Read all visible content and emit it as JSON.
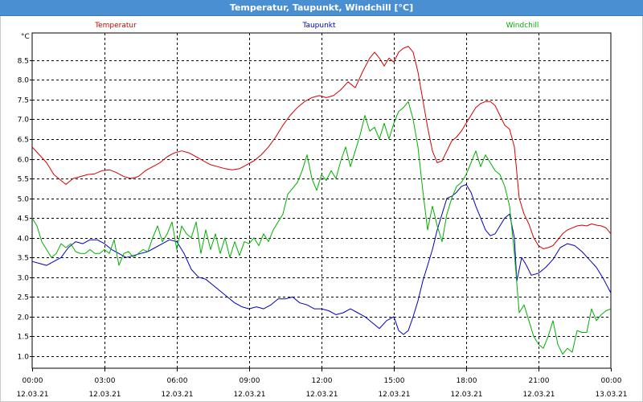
{
  "window": {
    "title": "Temperatur, Taupunkt, Windchill [°C]"
  },
  "chart_data": {
    "type": "line",
    "unit_label": "°C",
    "ylim": [
      1.0,
      9.0
    ],
    "y_ticks": [
      "1.0",
      "1.5",
      "2.0",
      "2.5",
      "3.0",
      "3.5",
      "4.0",
      "4.5",
      "5.0",
      "5.5",
      "6.0",
      "6.5",
      "7.0",
      "7.5",
      "8.0",
      "8.5"
    ],
    "x_ticks": [
      {
        "time": "00:00",
        "date": "12.03.21"
      },
      {
        "time": "03:00",
        "date": "12.03.21"
      },
      {
        "time": "06:00",
        "date": "12.03.21"
      },
      {
        "time": "09:00",
        "date": "12.03.21"
      },
      {
        "time": "12:00",
        "date": "12.03.21"
      },
      {
        "time": "15:00",
        "date": "12.03.21"
      },
      {
        "time": "18:00",
        "date": "12.03.21"
      },
      {
        "time": "21:00",
        "date": "12.03.21"
      },
      {
        "time": "00:00",
        "date": "13.03.21"
      }
    ],
    "x_hours_range": [
      0,
      24
    ],
    "grid": true,
    "series": [
      {
        "name": "Temperatur",
        "color": "#d40000",
        "points": [
          [
            0,
            6.3
          ],
          [
            0.3,
            6.1
          ],
          [
            0.6,
            5.9
          ],
          [
            0.9,
            5.6
          ],
          [
            1.2,
            5.45
          ],
          [
            1.4,
            5.35
          ],
          [
            1.7,
            5.5
          ],
          [
            2.0,
            5.55
          ],
          [
            2.3,
            5.6
          ],
          [
            2.6,
            5.62
          ],
          [
            2.9,
            5.7
          ],
          [
            3.2,
            5.72
          ],
          [
            3.5,
            5.65
          ],
          [
            3.8,
            5.55
          ],
          [
            4.1,
            5.5
          ],
          [
            4.4,
            5.55
          ],
          [
            4.7,
            5.7
          ],
          [
            5.0,
            5.8
          ],
          [
            5.3,
            5.9
          ],
          [
            5.6,
            6.05
          ],
          [
            5.9,
            6.15
          ],
          [
            6.2,
            6.2
          ],
          [
            6.5,
            6.15
          ],
          [
            6.8,
            6.05
          ],
          [
            7.1,
            5.95
          ],
          [
            7.4,
            5.85
          ],
          [
            7.7,
            5.8
          ],
          [
            8.0,
            5.75
          ],
          [
            8.3,
            5.72
          ],
          [
            8.6,
            5.75
          ],
          [
            8.9,
            5.85
          ],
          [
            9.2,
            5.95
          ],
          [
            9.5,
            6.1
          ],
          [
            9.8,
            6.3
          ],
          [
            10.1,
            6.55
          ],
          [
            10.4,
            6.85
          ],
          [
            10.7,
            7.1
          ],
          [
            11.0,
            7.3
          ],
          [
            11.3,
            7.45
          ],
          [
            11.6,
            7.55
          ],
          [
            11.9,
            7.6
          ],
          [
            12.2,
            7.55
          ],
          [
            12.5,
            7.6
          ],
          [
            12.8,
            7.75
          ],
          [
            13.1,
            7.95
          ],
          [
            13.4,
            7.8
          ],
          [
            13.7,
            8.2
          ],
          [
            14.0,
            8.55
          ],
          [
            14.2,
            8.7
          ],
          [
            14.4,
            8.55
          ],
          [
            14.6,
            8.35
          ],
          [
            14.8,
            8.55
          ],
          [
            15.0,
            8.45
          ],
          [
            15.2,
            8.7
          ],
          [
            15.4,
            8.8
          ],
          [
            15.6,
            8.85
          ],
          [
            15.8,
            8.7
          ],
          [
            16.0,
            8.2
          ],
          [
            16.2,
            7.5
          ],
          [
            16.4,
            6.8
          ],
          [
            16.6,
            6.2
          ],
          [
            16.8,
            5.9
          ],
          [
            17.0,
            5.95
          ],
          [
            17.2,
            6.2
          ],
          [
            17.4,
            6.45
          ],
          [
            17.6,
            6.55
          ],
          [
            17.8,
            6.7
          ],
          [
            18.0,
            6.9
          ],
          [
            18.2,
            7.1
          ],
          [
            18.4,
            7.3
          ],
          [
            18.6,
            7.4
          ],
          [
            18.8,
            7.45
          ],
          [
            19.0,
            7.45
          ],
          [
            19.2,
            7.35
          ],
          [
            19.4,
            7.1
          ],
          [
            19.6,
            6.85
          ],
          [
            19.8,
            6.75
          ],
          [
            20.0,
            6.3
          ],
          [
            20.2,
            5.0
          ],
          [
            20.4,
            4.6
          ],
          [
            20.6,
            4.35
          ],
          [
            20.8,
            4.0
          ],
          [
            21.0,
            3.8
          ],
          [
            21.2,
            3.72
          ],
          [
            21.4,
            3.75
          ],
          [
            21.6,
            3.8
          ],
          [
            21.8,
            3.95
          ],
          [
            22.0,
            4.1
          ],
          [
            22.2,
            4.2
          ],
          [
            22.4,
            4.25
          ],
          [
            22.6,
            4.3
          ],
          [
            22.8,
            4.32
          ],
          [
            23.0,
            4.3
          ],
          [
            23.2,
            4.35
          ],
          [
            23.4,
            4.32
          ],
          [
            23.6,
            4.3
          ],
          [
            23.8,
            4.25
          ],
          [
            24.0,
            4.1
          ]
        ]
      },
      {
        "name": "Taupunkt",
        "color": "#0000c0",
        "points": [
          [
            0,
            3.4
          ],
          [
            0.3,
            3.35
          ],
          [
            0.6,
            3.3
          ],
          [
            0.9,
            3.4
          ],
          [
            1.2,
            3.5
          ],
          [
            1.5,
            3.75
          ],
          [
            1.8,
            3.9
          ],
          [
            2.1,
            3.85
          ],
          [
            2.4,
            3.95
          ],
          [
            2.7,
            3.95
          ],
          [
            3.0,
            3.85
          ],
          [
            3.3,
            3.7
          ],
          [
            3.6,
            3.6
          ],
          [
            3.9,
            3.5
          ],
          [
            4.2,
            3.55
          ],
          [
            4.5,
            3.6
          ],
          [
            4.8,
            3.65
          ],
          [
            5.1,
            3.75
          ],
          [
            5.4,
            3.85
          ],
          [
            5.7,
            3.95
          ],
          [
            6.0,
            3.9
          ],
          [
            6.3,
            3.6
          ],
          [
            6.6,
            3.2
          ],
          [
            6.9,
            3.0
          ],
          [
            7.2,
            2.95
          ],
          [
            7.5,
            2.8
          ],
          [
            7.8,
            2.65
          ],
          [
            8.1,
            2.5
          ],
          [
            8.4,
            2.35
          ],
          [
            8.7,
            2.25
          ],
          [
            9.0,
            2.2
          ],
          [
            9.3,
            2.25
          ],
          [
            9.6,
            2.2
          ],
          [
            9.9,
            2.3
          ],
          [
            10.2,
            2.45
          ],
          [
            10.5,
            2.45
          ],
          [
            10.8,
            2.5
          ],
          [
            11.1,
            2.35
          ],
          [
            11.4,
            2.3
          ],
          [
            11.7,
            2.2
          ],
          [
            12.0,
            2.2
          ],
          [
            12.3,
            2.15
          ],
          [
            12.6,
            2.05
          ],
          [
            12.9,
            2.1
          ],
          [
            13.2,
            2.2
          ],
          [
            13.5,
            2.1
          ],
          [
            13.8,
            2.0
          ],
          [
            14.1,
            1.85
          ],
          [
            14.4,
            1.7
          ],
          [
            14.7,
            1.9
          ],
          [
            15.0,
            2.0
          ],
          [
            15.2,
            1.65
          ],
          [
            15.4,
            1.55
          ],
          [
            15.6,
            1.65
          ],
          [
            15.8,
            2.0
          ],
          [
            16.0,
            2.4
          ],
          [
            16.2,
            2.9
          ],
          [
            16.4,
            3.3
          ],
          [
            16.6,
            3.7
          ],
          [
            16.8,
            4.2
          ],
          [
            17.0,
            4.6
          ],
          [
            17.2,
            5.0
          ],
          [
            17.4,
            5.05
          ],
          [
            17.6,
            5.15
          ],
          [
            17.8,
            5.3
          ],
          [
            18.0,
            5.35
          ],
          [
            18.2,
            5.15
          ],
          [
            18.4,
            4.8
          ],
          [
            18.6,
            4.5
          ],
          [
            18.8,
            4.2
          ],
          [
            19.0,
            4.05
          ],
          [
            19.2,
            4.1
          ],
          [
            19.4,
            4.3
          ],
          [
            19.6,
            4.5
          ],
          [
            19.8,
            4.6
          ],
          [
            20.0,
            4.0
          ],
          [
            20.1,
            2.9
          ],
          [
            20.3,
            3.5
          ],
          [
            20.5,
            3.3
          ],
          [
            20.7,
            3.05
          ],
          [
            21.0,
            3.1
          ],
          [
            21.3,
            3.25
          ],
          [
            21.6,
            3.45
          ],
          [
            21.9,
            3.75
          ],
          [
            22.2,
            3.85
          ],
          [
            22.5,
            3.8
          ],
          [
            22.8,
            3.65
          ],
          [
            23.1,
            3.45
          ],
          [
            23.4,
            3.25
          ],
          [
            23.7,
            2.95
          ],
          [
            24.0,
            2.6
          ]
        ]
      },
      {
        "name": "Windchill",
        "color": "#00b000",
        "points": [
          [
            0,
            4.5
          ],
          [
            0.2,
            4.3
          ],
          [
            0.4,
            3.9
          ],
          [
            0.6,
            3.7
          ],
          [
            0.8,
            3.5
          ],
          [
            1.0,
            3.6
          ],
          [
            1.2,
            3.85
          ],
          [
            1.4,
            3.75
          ],
          [
            1.6,
            3.85
          ],
          [
            1.8,
            3.65
          ],
          [
            2.0,
            3.6
          ],
          [
            2.2,
            3.6
          ],
          [
            2.4,
            3.7
          ],
          [
            2.6,
            3.6
          ],
          [
            2.8,
            3.6
          ],
          [
            3.0,
            3.7
          ],
          [
            3.2,
            3.6
          ],
          [
            3.4,
            3.95
          ],
          [
            3.6,
            3.3
          ],
          [
            3.8,
            3.6
          ],
          [
            4.0,
            3.65
          ],
          [
            4.2,
            3.5
          ],
          [
            4.4,
            3.6
          ],
          [
            4.6,
            3.7
          ],
          [
            4.8,
            3.65
          ],
          [
            5.0,
            4.0
          ],
          [
            5.2,
            4.3
          ],
          [
            5.4,
            3.9
          ],
          [
            5.6,
            4.1
          ],
          [
            5.8,
            4.4
          ],
          [
            6.0,
            3.7
          ],
          [
            6.2,
            4.3
          ],
          [
            6.4,
            4.1
          ],
          [
            6.6,
            4.0
          ],
          [
            6.8,
            4.4
          ],
          [
            7.0,
            3.6
          ],
          [
            7.2,
            4.2
          ],
          [
            7.4,
            3.7
          ],
          [
            7.6,
            4.1
          ],
          [
            7.8,
            3.6
          ],
          [
            8.0,
            4.0
          ],
          [
            8.2,
            3.5
          ],
          [
            8.4,
            3.9
          ],
          [
            8.6,
            3.55
          ],
          [
            8.8,
            3.9
          ],
          [
            9.0,
            3.85
          ],
          [
            9.2,
            4.0
          ],
          [
            9.4,
            3.8
          ],
          [
            9.6,
            4.1
          ],
          [
            9.8,
            3.9
          ],
          [
            10.0,
            4.2
          ],
          [
            10.2,
            4.4
          ],
          [
            10.4,
            4.6
          ],
          [
            10.6,
            5.1
          ],
          [
            10.8,
            5.25
          ],
          [
            11.0,
            5.4
          ],
          [
            11.2,
            5.7
          ],
          [
            11.4,
            6.1
          ],
          [
            11.6,
            5.5
          ],
          [
            11.8,
            5.2
          ],
          [
            12.0,
            5.6
          ],
          [
            12.2,
            5.45
          ],
          [
            12.4,
            5.7
          ],
          [
            12.6,
            5.5
          ],
          [
            12.8,
            5.95
          ],
          [
            13.0,
            6.3
          ],
          [
            13.2,
            5.8
          ],
          [
            13.4,
            6.2
          ],
          [
            13.6,
            6.6
          ],
          [
            13.8,
            7.1
          ],
          [
            14.0,
            6.7
          ],
          [
            14.2,
            6.8
          ],
          [
            14.4,
            6.5
          ],
          [
            14.6,
            6.9
          ],
          [
            14.8,
            6.5
          ],
          [
            15.0,
            6.9
          ],
          [
            15.2,
            7.2
          ],
          [
            15.4,
            7.3
          ],
          [
            15.6,
            7.45
          ],
          [
            15.8,
            7.0
          ],
          [
            16.0,
            6.3
          ],
          [
            16.2,
            5.2
          ],
          [
            16.4,
            4.2
          ],
          [
            16.6,
            4.8
          ],
          [
            16.8,
            4.3
          ],
          [
            17.0,
            3.9
          ],
          [
            17.2,
            4.6
          ],
          [
            17.4,
            5.0
          ],
          [
            17.6,
            5.3
          ],
          [
            17.8,
            5.4
          ],
          [
            18.0,
            5.6
          ],
          [
            18.2,
            5.9
          ],
          [
            18.4,
            6.2
          ],
          [
            18.6,
            5.8
          ],
          [
            18.8,
            6.1
          ],
          [
            19.0,
            5.9
          ],
          [
            19.2,
            5.7
          ],
          [
            19.4,
            5.6
          ],
          [
            19.6,
            5.3
          ],
          [
            19.8,
            4.8
          ],
          [
            20.0,
            3.6
          ],
          [
            20.2,
            2.1
          ],
          [
            20.4,
            2.3
          ],
          [
            20.6,
            1.9
          ],
          [
            20.8,
            1.5
          ],
          [
            21.0,
            1.3
          ],
          [
            21.2,
            1.2
          ],
          [
            21.4,
            1.5
          ],
          [
            21.6,
            1.9
          ],
          [
            21.8,
            1.3
          ],
          [
            22.0,
            1.05
          ],
          [
            22.2,
            1.2
          ],
          [
            22.4,
            1.1
          ],
          [
            22.6,
            1.65
          ],
          [
            22.8,
            1.6
          ],
          [
            23.0,
            1.6
          ],
          [
            23.2,
            2.2
          ],
          [
            23.4,
            1.9
          ],
          [
            23.6,
            2.05
          ],
          [
            23.8,
            2.15
          ],
          [
            24.0,
            2.2
          ]
        ]
      }
    ]
  }
}
